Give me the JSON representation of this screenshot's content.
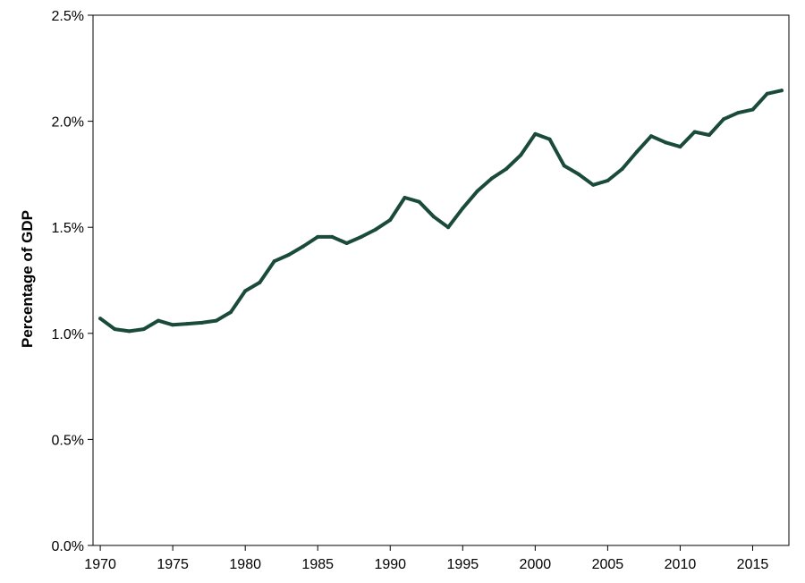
{
  "chart_data": {
    "type": "line",
    "title": "",
    "xlabel": "",
    "ylabel": "Percentage of GDP",
    "xlim": [
      1969.5,
      2017.5
    ],
    "ylim": [
      0,
      2.5
    ],
    "grid": false,
    "x_ticks": [
      1970,
      1975,
      1980,
      1985,
      1990,
      1995,
      2000,
      2005,
      2010,
      2015
    ],
    "y_ticks": [
      {
        "value": 0.0,
        "label": "0.0%"
      },
      {
        "value": 0.5,
        "label": "0.5%"
      },
      {
        "value": 1.0,
        "label": "1.0%"
      },
      {
        "value": 1.5,
        "label": "1.5%"
      },
      {
        "value": 2.0,
        "label": "2.0%"
      },
      {
        "value": 2.5,
        "label": "2.5%"
      }
    ],
    "series": [
      {
        "color": "#1a4a3a",
        "x": [
          1970,
          1971,
          1972,
          1973,
          1974,
          1975,
          1976,
          1977,
          1978,
          1979,
          1980,
          1981,
          1982,
          1983,
          1984,
          1985,
          1986,
          1987,
          1988,
          1989,
          1990,
          1991,
          1992,
          1993,
          1994,
          1995,
          1996,
          1997,
          1998,
          1999,
          2000,
          2001,
          2002,
          2003,
          2004,
          2005,
          2006,
          2007,
          2008,
          2009,
          2010,
          2011,
          2012,
          2013,
          2014,
          2015,
          2016,
          2017
        ],
        "values": [
          1.07,
          1.02,
          1.01,
          1.02,
          1.06,
          1.04,
          1.045,
          1.05,
          1.06,
          1.1,
          1.2,
          1.24,
          1.34,
          1.37,
          1.41,
          1.455,
          1.455,
          1.425,
          1.455,
          1.49,
          1.535,
          1.64,
          1.62,
          1.55,
          1.5,
          1.59,
          1.67,
          1.73,
          1.775,
          1.84,
          1.94,
          1.915,
          1.79,
          1.75,
          1.7,
          1.72,
          1.775,
          1.855,
          1.93,
          1.9,
          1.88,
          1.95,
          1.935,
          2.01,
          2.04,
          2.055,
          2.13,
          2.145
        ]
      }
    ]
  }
}
